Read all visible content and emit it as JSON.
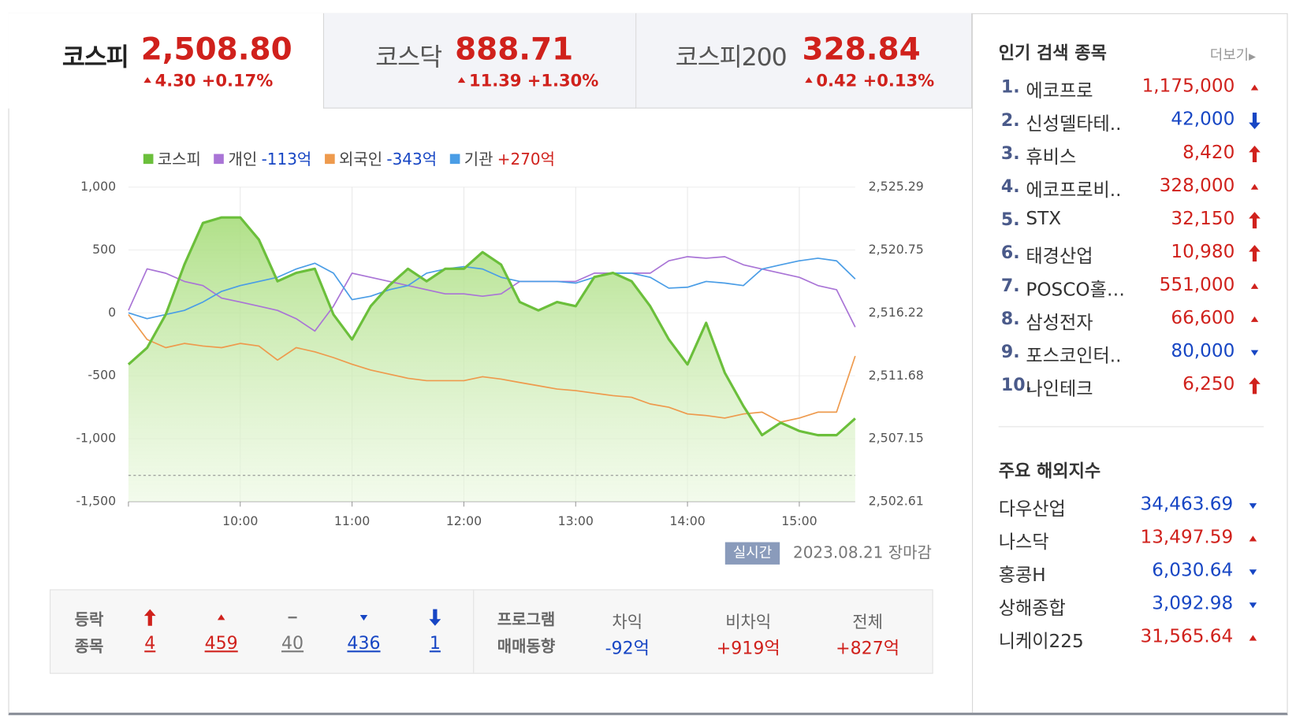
{
  "tabs": [
    {
      "name": "코스피",
      "value": "2,508.80",
      "change": "4.30",
      "rate": "+0.17%"
    },
    {
      "name": "코스닥",
      "value": "888.71",
      "change": "11.39",
      "rate": "+1.30%"
    },
    {
      "name": "코스피200",
      "value": "328.84",
      "change": "0.42",
      "rate": "+0.13%"
    }
  ],
  "chart_data": {
    "type": "line",
    "x": [
      "09:00",
      "09:10",
      "09:20",
      "09:30",
      "09:40",
      "09:50",
      "10:00",
      "10:10",
      "10:20",
      "10:30",
      "10:40",
      "10:50",
      "11:00",
      "11:10",
      "11:20",
      "11:30",
      "11:40",
      "11:50",
      "12:00",
      "12:10",
      "12:20",
      "12:30",
      "12:40",
      "12:50",
      "13:00",
      "13:10",
      "13:20",
      "13:30",
      "13:40",
      "13:50",
      "14:00",
      "14:10",
      "14:20",
      "14:30",
      "14:40",
      "14:50",
      "15:00",
      "15:10",
      "15:20",
      "15:30"
    ],
    "xlim": [
      "09:00",
      "15:30"
    ],
    "xticks": [
      "10:00",
      "11:00",
      "12:00",
      "13:00",
      "14:00",
      "15:00"
    ],
    "ylim": [
      -1500,
      1000
    ],
    "yticks": [
      {
        "value": 1000,
        "label": "1,000"
      },
      500,
      0,
      -500,
      {
        "value": -1000,
        "label": "-1,000"
      },
      {
        "value": -1500,
        "label": "-1,500"
      }
    ],
    "y2lim": [
      2502.61,
      2525.29
    ],
    "y2ticks": [
      {
        "value": 2525.29,
        "label": "2,525.29"
      },
      {
        "value": 2520.75,
        "label": "2,520.75"
      },
      {
        "value": 2516.22,
        "label": "2,516.22"
      },
      {
        "value": 2511.68,
        "label": "2,511.68"
      },
      {
        "value": 2507.15,
        "label": "2,507.15"
      },
      {
        "value": 2502.61,
        "label": "2,502.61"
      }
    ],
    "baseline": 2504.5,
    "grid": true,
    "series": [
      {
        "name": "코스피",
        "color": "#6bbf3b",
        "axis": "y2",
        "values": [
          2512.5,
          2513.7,
          2516.1,
          2519.7,
          2522.7,
          2523.1,
          2523.1,
          2521.5,
          2518.5,
          2519.1,
          2519.4,
          2516.1,
          2514.3,
          2516.7,
          2518.2,
          2519.4,
          2518.5,
          2519.4,
          2519.4,
          2520.6,
          2519.7,
          2517.0,
          2516.4,
          2517.0,
          2516.7,
          2518.8,
          2519.1,
          2518.5,
          2516.7,
          2514.3,
          2512.5,
          2515.5,
          2511.9,
          2509.5,
          2507.4,
          2508.3,
          2507.7,
          2507.4,
          2507.4,
          2508.6
        ]
      },
      {
        "name": "개인",
        "legend_value": "-113억",
        "color": "#a974d6",
        "values": [
          20,
          350,
          315,
          250,
          217,
          118,
          86,
          53,
          20,
          -46,
          -145,
          53,
          316,
          283,
          250,
          217,
          184,
          151,
          151,
          132,
          151,
          250,
          250,
          250,
          250,
          316,
          316,
          316,
          316,
          414,
          447,
          434,
          447,
          382,
          349,
          316,
          283,
          217,
          184,
          -113
        ]
      },
      {
        "name": "외국인",
        "legend_value": "-343억",
        "color": "#ee9a4d",
        "values": [
          -13,
          -211,
          -276,
          -243,
          -263,
          -276,
          -243,
          -263,
          -375,
          -276,
          -309,
          -355,
          -408,
          -454,
          -487,
          -520,
          -539,
          -539,
          -539,
          -507,
          -526,
          -553,
          -579,
          -605,
          -618,
          -638,
          -658,
          -671,
          -724,
          -750,
          -803,
          -816,
          -836,
          -803,
          -789,
          -868,
          -836,
          -789,
          -789,
          -343
        ]
      },
      {
        "name": "기관",
        "legend_value": "+270억",
        "color": "#4a9de6",
        "values": [
          0,
          -46,
          -13,
          20,
          86,
          171,
          217,
          250,
          283,
          349,
          395,
          316,
          105,
          132,
          184,
          217,
          316,
          349,
          368,
          349,
          283,
          250,
          250,
          250,
          237,
          283,
          316,
          316,
          283,
          197,
          204,
          250,
          237,
          217,
          349,
          382,
          414,
          434,
          414,
          270
        ]
      }
    ]
  },
  "status": {
    "badge": "실시간",
    "date": "2023.08.21",
    "state": "장마감"
  },
  "breadth": {
    "label": [
      "등락",
      "종목"
    ],
    "items": [
      {
        "direction": "upper_limit",
        "count": 4
      },
      {
        "direction": "up",
        "count": 459
      },
      {
        "direction": "flat",
        "count": 40
      },
      {
        "direction": "down",
        "count": 436
      },
      {
        "direction": "lower_limit",
        "count": 1
      }
    ]
  },
  "program": {
    "label": [
      "프로그램",
      "매매동향"
    ],
    "items": [
      {
        "name": "차익",
        "value": "-92억"
      },
      {
        "name": "비차익",
        "value": "+919억"
      },
      {
        "name": "전체",
        "value": "+827억"
      }
    ]
  },
  "popular": {
    "title": "인기 검색 종목",
    "more": "더보기",
    "items": [
      {
        "rank": "1.",
        "name": "에코프로",
        "price": "1,175,000",
        "direction": "up"
      },
      {
        "rank": "2.",
        "name": "신성델타테..",
        "price": "42,000",
        "direction": "lower_limit"
      },
      {
        "rank": "3.",
        "name": "휴비스",
        "price": "8,420",
        "direction": "upper_limit"
      },
      {
        "rank": "4.",
        "name": "에코프로비..",
        "price": "328,000",
        "direction": "up"
      },
      {
        "rank": "5.",
        "name": "STX",
        "price": "32,150",
        "direction": "upper_limit"
      },
      {
        "rank": "6.",
        "name": "태경산업",
        "price": "10,980",
        "direction": "upper_limit"
      },
      {
        "rank": "7.",
        "name": "POSCO홀…",
        "price": "551,000",
        "direction": "up"
      },
      {
        "rank": "8.",
        "name": "삼성전자",
        "price": "66,600",
        "direction": "up"
      },
      {
        "rank": "9.",
        "name": "포스코인터..",
        "price": "80,000",
        "direction": "down"
      },
      {
        "rank": "10.",
        "name": "나인테크",
        "price": "6,250",
        "direction": "upper_limit"
      }
    ]
  },
  "world": {
    "title": "주요 해외지수",
    "items": [
      {
        "name": "다우산업",
        "value": "34,463.69",
        "direction": "down"
      },
      {
        "name": "나스닥",
        "value": "13,497.59",
        "direction": "up"
      },
      {
        "name": "홍콩H",
        "value": "6,030.64",
        "direction": "down"
      },
      {
        "name": "상해종합",
        "value": "3,092.98",
        "direction": "down"
      },
      {
        "name": "니케이225",
        "value": "31,565.64",
        "direction": "up"
      }
    ]
  }
}
